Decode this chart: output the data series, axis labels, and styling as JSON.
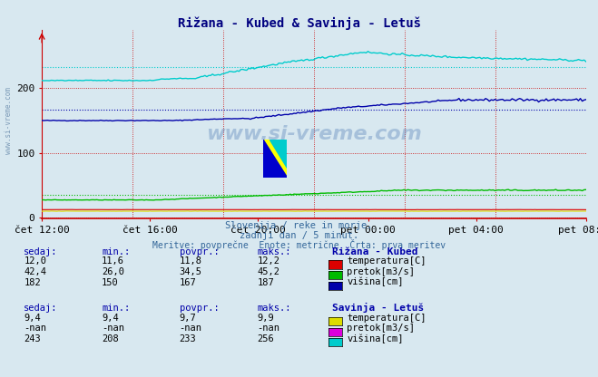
{
  "title": "Rižana - Kubed & Savinja - Letuš",
  "background_color": "#d8e8f0",
  "yticks": [
    0,
    100,
    200
  ],
  "ymin": -2,
  "ymax": 290,
  "xtick_labels": [
    "čet 12:00",
    "čet 16:00",
    "čet 20:00",
    "pet 00:00",
    "pet 04:00",
    "pet 08:00"
  ],
  "subtitle_lines": [
    "Slovenija / reke in morje.",
    "zadnji dan / 5 minut.",
    "Meritve: povprečne  Enote: metrične  Črta: prva meritev"
  ],
  "legend_block1_title": "Rižana - Kubed",
  "legend_block1": [
    {
      "label": "temperatura[C]",
      "color": "#dd0000"
    },
    {
      "label": "pretok[m3/s]",
      "color": "#00bb00"
    },
    {
      "label": "višina[cm]",
      "color": "#0000aa"
    }
  ],
  "legend_block1_data": {
    "sedaj": [
      "12,0",
      "42,4",
      "182"
    ],
    "min": [
      "11,6",
      "26,0",
      "150"
    ],
    "povpr": [
      "11,8",
      "34,5",
      "167"
    ],
    "maks": [
      "12,2",
      "45,2",
      "187"
    ]
  },
  "legend_block2_title": "Savinja - Letuš",
  "legend_block2": [
    {
      "label": "temperatura[C]",
      "color": "#dddd00"
    },
    {
      "label": "pretok[m3/s]",
      "color": "#dd00dd"
    },
    {
      "label": "višina[cm]",
      "color": "#00cccc"
    }
  ],
  "legend_block2_data": {
    "sedaj": [
      "9,4",
      "-nan",
      "243"
    ],
    "min": [
      "9,4",
      "-nan",
      "208"
    ],
    "povpr": [
      "9,7",
      "-nan",
      "233"
    ],
    "maks": [
      "9,9",
      "-nan",
      "256"
    ]
  },
  "rizana_visina_ref": 167,
  "savinja_visina_ref": 233,
  "rizana_pretok_ref": 34.5
}
